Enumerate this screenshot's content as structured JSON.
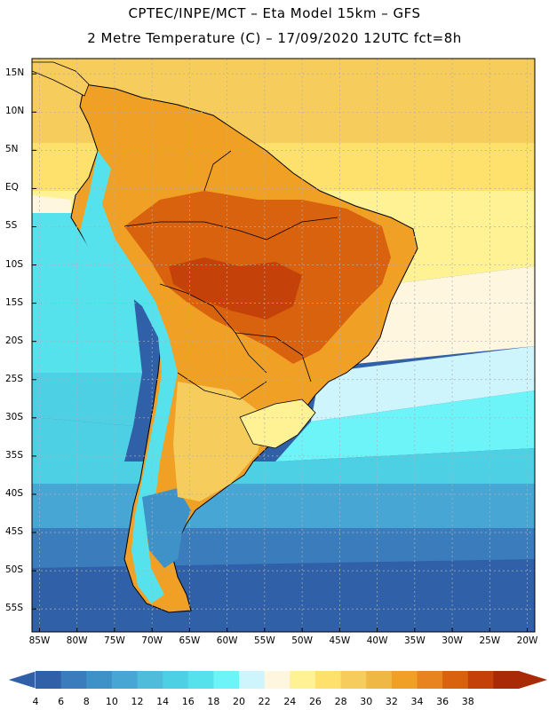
{
  "header": {
    "line1": "CPTEC/INPE/MCT –  Eta Model 15km – GFS",
    "line2": "2 Metre Temperature (C) – 17/09/2020 12UTC fct=8h"
  },
  "map": {
    "region": "South America",
    "lat_labels": [
      "15N",
      "10N",
      "5N",
      "EQ",
      "5S",
      "10S",
      "15S",
      "20S",
      "25S",
      "30S",
      "35S",
      "40S",
      "45S",
      "50S",
      "55S"
    ],
    "lat_values": [
      15,
      10,
      5,
      0,
      -5,
      -10,
      -15,
      -20,
      -25,
      -30,
      -35,
      -40,
      -45,
      -50,
      -55
    ],
    "lon_labels": [
      "85W",
      "80W",
      "75W",
      "70W",
      "65W",
      "60W",
      "55W",
      "50W",
      "45W",
      "40W",
      "35W",
      "30W",
      "25W",
      "20W"
    ],
    "lon_values": [
      -85,
      -80,
      -75,
      -70,
      -65,
      -60,
      -55,
      -50,
      -45,
      -40,
      -35,
      -30,
      -25,
      -20
    ],
    "lat_range": [
      -58,
      17
    ],
    "lon_range": [
      -86,
      -19
    ]
  },
  "colorbar": {
    "labels": [
      "4",
      "6",
      "8",
      "10",
      "12",
      "14",
      "16",
      "18",
      "20",
      "22",
      "24",
      "26",
      "28",
      "30",
      "32",
      "34",
      "36",
      "38"
    ],
    "colors": [
      "#3060a8",
      "#3a7cbc",
      "#3f92c8",
      "#48a6d4",
      "#4fbcdc",
      "#4ed0e4",
      "#56e2ec",
      "#6cf4f8",
      "#cef4fc",
      "#fff6e0",
      "#fff294",
      "#fee06c",
      "#f6cc5c",
      "#efb844",
      "#f0a024",
      "#e88420",
      "#d8620e",
      "#c4420a",
      "#a82a06"
    ]
  }
}
